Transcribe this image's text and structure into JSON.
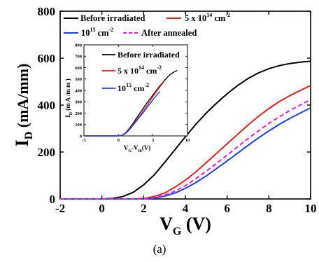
{
  "caption": "(a)",
  "chart_data": [
    {
      "type": "line",
      "xlabel": {
        "main": "V",
        "sub": "G",
        "rest": " (V)"
      },
      "ylabel": {
        "main": "I",
        "sub": "D",
        "rest": " (mA/mm)"
      },
      "xlim": [
        -2,
        10
      ],
      "ylim": [
        0,
        800
      ],
      "xticks": [
        -2,
        0,
        2,
        4,
        6,
        8,
        10
      ],
      "yticks": [
        0,
        200,
        400,
        600,
        800
      ],
      "grid": false,
      "legend_position": "top",
      "series": [
        {
          "name": "Before irradiated",
          "color": "#000000",
          "dash": "solid",
          "x": [
            -2,
            0,
            0.5,
            1.0,
            1.5,
            2.0,
            2.5,
            3.0,
            3.5,
            4.0,
            4.5,
            5.0,
            5.5,
            6.0,
            6.5,
            7.0,
            7.5,
            8.0,
            8.5,
            9.0,
            9.5,
            10.0
          ],
          "y": [
            0,
            0,
            2,
            10,
            28,
            60,
            102,
            155,
            210,
            265,
            318,
            366,
            409,
            448,
            483,
            513,
            537,
            555,
            568,
            577,
            583,
            587
          ]
        },
        {
          "name": "5 x 10^14 cm^-2",
          "color": "#e8211d",
          "dash": "solid",
          "x": [
            -2,
            1.5,
            2.0,
            2.5,
            3.0,
            3.5,
            4.0,
            4.5,
            5.0,
            5.5,
            6.0,
            6.5,
            7.0,
            7.5,
            8.0,
            8.5,
            9.0,
            9.5,
            10.0
          ],
          "y": [
            0,
            0,
            2,
            10,
            25,
            50,
            80,
            115,
            155,
            195,
            235,
            275,
            315,
            352,
            385,
            415,
            440,
            462,
            483
          ]
        },
        {
          "name": "10^15 cm^-2",
          "color": "#1f3fe6",
          "dash": "solid",
          "x": [
            -2,
            2.0,
            2.5,
            3.0,
            3.5,
            4.0,
            4.5,
            5.0,
            5.5,
            6.0,
            6.5,
            7.0,
            7.5,
            8.0,
            8.5,
            9.0,
            9.5,
            10.0
          ],
          "y": [
            0,
            0,
            4,
            12,
            25,
            45,
            70,
            98,
            130,
            162,
            195,
            228,
            260,
            290,
            318,
            343,
            366,
            388
          ]
        },
        {
          "name": "After annealed",
          "color": "#e619e6",
          "dash": "dashed",
          "x": [
            -2,
            2.0,
            2.5,
            3.0,
            3.5,
            4.0,
            4.5,
            5.0,
            5.5,
            6.0,
            6.5,
            7.0,
            7.5,
            8.0,
            8.5,
            9.0,
            9.5,
            10.0
          ],
          "y": [
            0,
            0,
            5,
            16,
            33,
            57,
            87,
            118,
            152,
            187,
            222,
            257,
            290,
            322,
            350,
            377,
            400,
            423
          ]
        }
      ]
    },
    {
      "type": "line",
      "inset": true,
      "xlabel": {
        "main": "V",
        "sub": "G",
        "rest": "-V",
        "sub2": "th",
        "rest2": "(V)"
      },
      "ylabel": {
        "main": "I",
        "sub": "D",
        "rest": " (m A /m m )"
      },
      "xlim": [
        -5,
        10
      ],
      "ylim": [
        0,
        800
      ],
      "xticks": [
        -5,
        0,
        5,
        10
      ],
      "yticks": [
        0,
        100,
        200,
        300,
        400,
        500,
        600,
        700,
        800
      ],
      "legend_position": "top-right",
      "series": [
        {
          "name": "Before irradiated",
          "color": "#000000",
          "x": [
            -5,
            0,
            0.5,
            1.0,
            1.5,
            2.0,
            2.5,
            3.0,
            3.5,
            4.0,
            4.5,
            5.0,
            5.5,
            6.0,
            6.5,
            7.0,
            7.5,
            8.0,
            8.5
          ],
          "y": [
            0,
            0,
            5,
            25,
            60,
            100,
            145,
            190,
            235,
            280,
            320,
            360,
            400,
            440,
            475,
            510,
            540,
            560,
            575
          ]
        },
        {
          "name": "5 x 10^14 cm^-2",
          "color": "#e8211d",
          "x": [
            -5,
            0,
            0.5,
            1.0,
            1.5,
            2.0,
            2.5,
            3.0,
            3.5,
            4.0,
            4.5,
            5.0,
            5.5,
            6.0,
            6.5
          ],
          "y": [
            0,
            0,
            5,
            22,
            52,
            90,
            130,
            170,
            210,
            255,
            300,
            345,
            390,
            430,
            470
          ]
        },
        {
          "name": "10^15 cm^-2",
          "color": "#1f3fe6",
          "x": [
            -5,
            0,
            0.5,
            1.0,
            1.5,
            2.0,
            2.5,
            3.0,
            3.5,
            4.0,
            4.5,
            5.0,
            5.5,
            6.0
          ],
          "y": [
            0,
            0,
            5,
            20,
            48,
            85,
            122,
            160,
            198,
            238,
            278,
            318,
            355,
            390
          ]
        }
      ]
    }
  ],
  "legend_text": {
    "before": "Before irradiated",
    "dose_mid_base": "5 x 10",
    "dose_mid_exp": "14",
    "dose_unit": " cm",
    "dose_unit_exp": "-2",
    "dose_high_base": "10",
    "dose_high_exp": "15",
    "after": "After annealed"
  }
}
